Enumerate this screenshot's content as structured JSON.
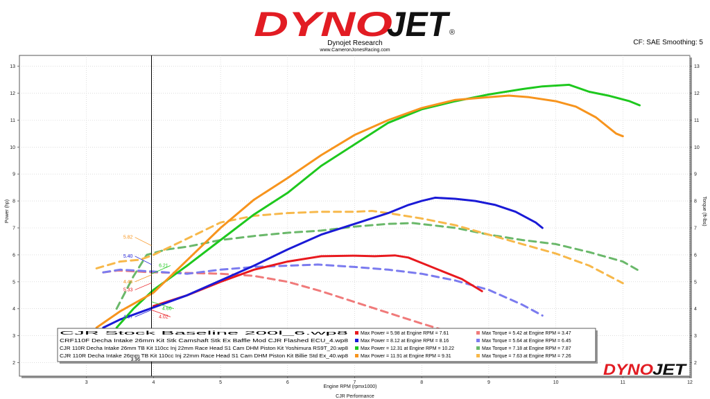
{
  "header": {
    "logo_text": "DYNOJET",
    "subtitle": "Dynojet Research",
    "website": "www.CameronJonesRacing.com",
    "cf_info": "CF: SAE Smoothing: 5"
  },
  "footer": {
    "logo_text": "DYNOJET",
    "run_title": "CJR Performance"
  },
  "colors": {
    "red": "#e8191e",
    "blue": "#1a1ad6",
    "green": "#1ec81e",
    "orange": "#f7941d",
    "red_dash": "#f07a7a",
    "blue_dash": "#7b7bef",
    "green_dash": "#6ab86a",
    "orange_dash": "#f7b84a"
  },
  "chart_data": {
    "type": "line",
    "title": "",
    "xlabel": "Engine RPM (rpmx1000)",
    "ylabel": "Power (hp)",
    "y2label": "Torque (ft-lbs)",
    "xlim": [
      2,
      12
    ],
    "ylim": [
      1.5,
      13.4
    ],
    "x_ticks": [
      "3",
      "4",
      "5",
      "6",
      "7",
      "8",
      "9",
      "10",
      "11",
      "12"
    ],
    "y_ticks": [
      "2",
      "3",
      "4",
      "5",
      "6",
      "7",
      "8",
      "9",
      "10",
      "11",
      "12",
      "13"
    ],
    "cursor_x": 3.97,
    "series": [
      {
        "name": "Max Power = 5.98 at Engine RPM = 7.61",
        "kind": "power",
        "color": "#e8191e",
        "x": [
          4.0,
          4.5,
          5.0,
          5.5,
          6.0,
          6.5,
          7.0,
          7.3,
          7.6,
          7.8,
          8.0,
          8.3,
          8.6,
          8.9
        ],
        "y": [
          4.1,
          4.5,
          5.0,
          5.45,
          5.75,
          5.95,
          5.97,
          5.95,
          5.98,
          5.9,
          5.7,
          5.4,
          5.1,
          4.65
        ]
      },
      {
        "name": "Max Power = 8.12 at Engine RPM = 8.16",
        "kind": "power",
        "color": "#1a1ad6",
        "x": [
          3.25,
          3.5,
          4.0,
          4.5,
          5.0,
          5.5,
          6.0,
          6.5,
          7.0,
          7.5,
          7.8,
          8.0,
          8.2,
          8.5,
          8.8,
          9.1,
          9.4,
          9.7,
          9.8
        ],
        "y": [
          3.3,
          3.6,
          4.05,
          4.5,
          5.05,
          5.6,
          6.2,
          6.75,
          7.15,
          7.55,
          7.85,
          8.0,
          8.12,
          8.08,
          8.0,
          7.85,
          7.6,
          7.2,
          7.0
        ]
      },
      {
        "name": "Max Power = 12.31 at Engine RPM = 10.22",
        "kind": "power",
        "color": "#1ec81e",
        "x": [
          3.45,
          3.7,
          4.0,
          4.5,
          5.0,
          5.5,
          6.0,
          6.5,
          7.0,
          7.5,
          8.0,
          8.5,
          9.0,
          9.5,
          9.8,
          10.2,
          10.5,
          10.8,
          11.1,
          11.25
        ],
        "y": [
          3.3,
          4.0,
          4.7,
          5.6,
          6.55,
          7.5,
          8.3,
          9.3,
          10.1,
          10.9,
          11.4,
          11.7,
          11.95,
          12.15,
          12.25,
          12.31,
          12.05,
          11.9,
          11.7,
          11.55
        ]
      },
      {
        "name": "Max Power = 11.91 at Engine RPM = 9.31",
        "kind": "power",
        "color": "#f7941d",
        "x": [
          3.15,
          3.5,
          4.0,
          4.5,
          5.0,
          5.5,
          6.0,
          6.5,
          7.0,
          7.5,
          8.0,
          8.5,
          9.0,
          9.3,
          9.6,
          10.0,
          10.3,
          10.6,
          10.9,
          11.0
        ],
        "y": [
          3.3,
          3.9,
          4.6,
          5.8,
          7.0,
          8.05,
          8.85,
          9.7,
          10.45,
          11.0,
          11.45,
          11.75,
          11.85,
          11.91,
          11.85,
          11.7,
          11.5,
          11.1,
          10.5,
          10.4
        ]
      },
      {
        "name": "Max Torque = 5.42 at Engine RPM = 3.47",
        "kind": "torque",
        "color": "#f07a7a",
        "x": [
          3.25,
          3.47,
          4.0,
          4.5,
          5.0,
          5.5,
          6.0,
          6.5,
          7.0,
          7.5,
          8.0,
          8.4
        ],
        "y": [
          5.35,
          5.42,
          5.35,
          5.33,
          5.3,
          5.22,
          5.0,
          4.65,
          4.25,
          3.85,
          3.45,
          3.15
        ]
      },
      {
        "name": "Max Torque = 5.64 at Engine RPM = 6.45",
        "kind": "torque",
        "color": "#7b7bef",
        "x": [
          3.25,
          3.5,
          4.0,
          4.5,
          5.0,
          5.5,
          6.0,
          6.45,
          7.0,
          7.5,
          8.0,
          8.5,
          9.0,
          9.5,
          9.8
        ],
        "y": [
          5.35,
          5.45,
          5.38,
          5.3,
          5.45,
          5.55,
          5.6,
          5.64,
          5.55,
          5.45,
          5.3,
          5.05,
          4.7,
          4.15,
          3.75
        ]
      },
      {
        "name": "Max Torque = 7.18 at Engine RPM = 7.87",
        "kind": "torque",
        "color": "#6ab86a",
        "x": [
          3.45,
          3.7,
          3.9,
          4.2,
          4.5,
          5.0,
          5.5,
          6.0,
          6.5,
          7.0,
          7.5,
          7.87,
          8.5,
          9.0,
          9.5,
          10.0,
          10.5,
          11.0,
          11.25
        ],
        "y": [
          4.0,
          5.2,
          6.0,
          6.2,
          6.3,
          6.55,
          6.7,
          6.82,
          6.9,
          7.05,
          7.15,
          7.18,
          7.0,
          6.75,
          6.55,
          6.4,
          6.1,
          5.75,
          5.4
        ]
      },
      {
        "name": "Max Torque = 7.63 at Engine RPM = 7.26",
        "kind": "torque",
        "color": "#f7b84a",
        "x": [
          3.15,
          3.5,
          3.8,
          4.0,
          4.5,
          5.0,
          5.5,
          6.0,
          6.5,
          7.0,
          7.26,
          7.5,
          8.0,
          8.5,
          9.0,
          9.5,
          10.0,
          10.5,
          11.0
        ],
        "y": [
          5.5,
          5.75,
          5.82,
          6.0,
          6.6,
          7.2,
          7.45,
          7.55,
          7.6,
          7.6,
          7.63,
          7.55,
          7.35,
          7.1,
          6.75,
          6.4,
          6.05,
          5.6,
          4.95
        ]
      }
    ],
    "annotations": [
      {
        "text": "5.82",
        "color": "#f7941d",
        "x": 3.62,
        "y": 6.6
      },
      {
        "text": "5.40",
        "color": "#1a1ad6",
        "x": 3.62,
        "y": 5.9
      },
      {
        "text": "6.21",
        "color": "#1ec81e",
        "x": 4.15,
        "y": 5.55
      },
      {
        "text": "4.46",
        "color": "#f7941d",
        "x": 3.62,
        "y": 4.95
      },
      {
        "text": "5.33",
        "color": "#e8191e",
        "x": 3.62,
        "y": 4.65
      },
      {
        "text": "4.66",
        "color": "#1ec81e",
        "x": 4.2,
        "y": 3.95
      },
      {
        "text": "4.07",
        "color": "#1a1ad6",
        "x": 3.62,
        "y": 3.65
      },
      {
        "text": "4.02",
        "color": "#e8191e",
        "x": 4.15,
        "y": 3.65
      }
    ],
    "legend": {
      "placement": "bottom",
      "runs": [
        "CJR Stock Baseline 200l_6.wp8",
        "CRF110F Decha Intake 26mm Kit Stk Camshaft Stk Ex Baffle Mod CJR Flashed ECU_4.wp8",
        "CJR 110R Decha Intake 26mm TB Kit 110cc Inj 22mm Race Head S1 Cam DHM Piston Kit Yoshimura RS9T_20.wp8",
        "CJR 110R Decha Intake 26mm TB Kit 110cc Inj 22mm Race Head S1 Cam DHM Piston Kit Billie Std Ex_40.wp8"
      ],
      "cursor_label": "3.96"
    }
  }
}
